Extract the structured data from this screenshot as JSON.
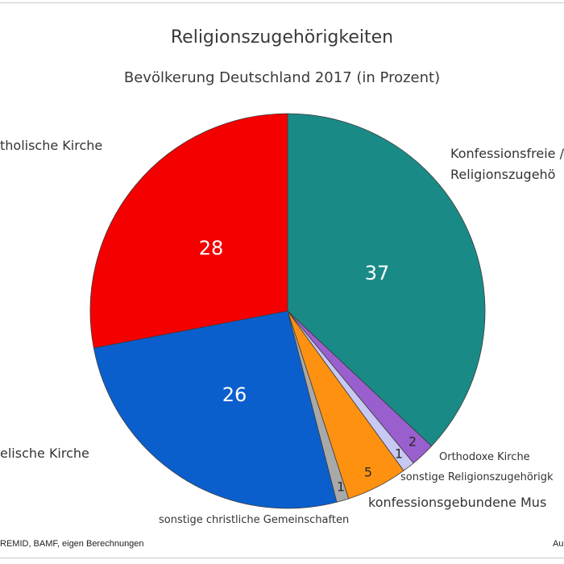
{
  "header": {
    "title": "Religionszugehörigkeiten",
    "subtitle": "Bevölkerung Deutschland 2017 (in Prozent)"
  },
  "footer": {
    "source": "REMID, BAMF, eigen Berechnungen",
    "author": "Au"
  },
  "chart_data": {
    "type": "pie",
    "title": "Religionszugehörigkeiten",
    "subtitle": "Bevölkerung Deutschland 2017 (in Prozent)",
    "start": "12 o'clock",
    "direction": "clockwise",
    "slices": [
      {
        "label": [
          "Konfessionsfreie /",
          "Religionszugehö"
        ],
        "value": 37,
        "color": "#1a8a86"
      },
      {
        "label": [
          "Orthodoxe Kirche"
        ],
        "value": 2,
        "color": "#9a5fce"
      },
      {
        "label": [
          "sonstige Religionszugehörigk"
        ],
        "value": 1,
        "color": "#c8c8f4"
      },
      {
        "label": [
          "konfessionsgebundene Mus"
        ],
        "value": 5,
        "color": "#ff9111"
      },
      {
        "label": [
          "sonstige christliche Gemeinschaften"
        ],
        "value": 1,
        "color": "#a9a9a9"
      },
      {
        "label": [
          "elische Kirche"
        ],
        "value": 26,
        "color": "#0a5fcd"
      },
      {
        "label": [
          "tholische Kirche"
        ],
        "value": 28,
        "color": "#f40000"
      }
    ]
  }
}
